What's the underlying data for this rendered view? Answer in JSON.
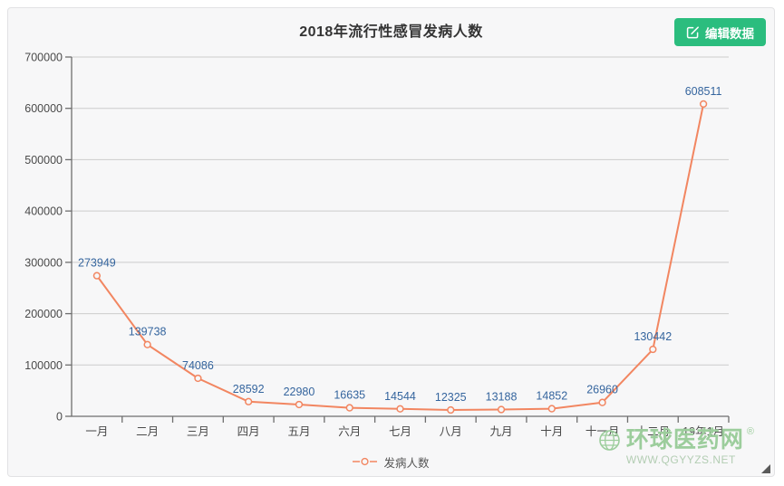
{
  "header": {
    "title": "2018年流行性感冒发病人数",
    "edit_button_label": "编辑数据"
  },
  "chart_data": {
    "type": "line",
    "title": "2018年流行性感冒发病人数",
    "categories": [
      "一月",
      "二月",
      "三月",
      "四月",
      "五月",
      "六月",
      "七月",
      "八月",
      "九月",
      "十月",
      "十一月",
      "十二月",
      "19年1月"
    ],
    "series": [
      {
        "name": "发病人数",
        "values": [
          273949,
          139738,
          74086,
          28592,
          22980,
          16635,
          14544,
          12325,
          13188,
          14852,
          26960,
          130442,
          608511
        ]
      }
    ],
    "xlabel": "",
    "ylabel": "",
    "ylim": [
      0,
      700000
    ],
    "y_ticks": [
      0,
      100000,
      200000,
      300000,
      400000,
      500000,
      600000,
      700000
    ],
    "grid": true,
    "legend_position": "bottom",
    "data_labels_shown": true
  },
  "legend": {
    "label": "发病人数"
  },
  "watermark": {
    "site_name": "环球医药网",
    "registered_mark": "®",
    "url": "WWW.QGYYZS.NET"
  },
  "colors": {
    "accent_green": "#2bbd7e",
    "line_orange": "#f28661",
    "data_label_blue": "#35659e",
    "axis_text": "#4a4a4a",
    "grid_line": "#cccccc",
    "axis_line": "#6e6e6e",
    "card_background": "#f7f7f8",
    "watermark_green": "#9ccd9c"
  }
}
